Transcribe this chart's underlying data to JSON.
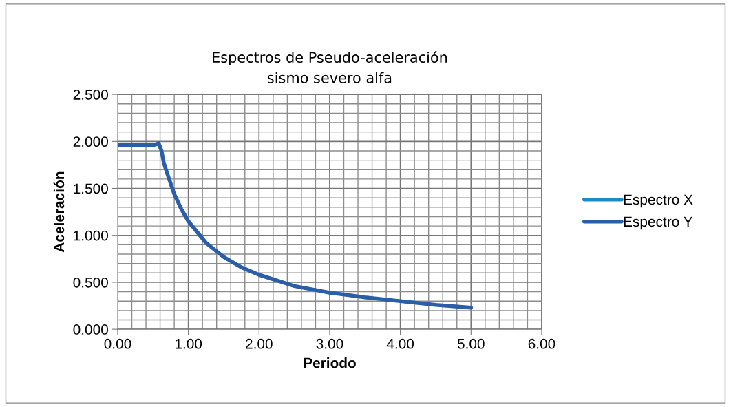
{
  "chart_data": {
    "type": "line",
    "title": "Espectros de Pseudo-aceleración\nsismo severo alfa",
    "xlabel": "Periodo",
    "ylabel": "Aceleración",
    "x": [
      0,
      0.1,
      0.2,
      0.3,
      0.4,
      0.5,
      0.58,
      0.62,
      0.65,
      0.7,
      0.8,
      0.9,
      1.0,
      1.25,
      1.5,
      1.75,
      2.0,
      2.5,
      3.0,
      3.5,
      4.0,
      4.5,
      5.0
    ],
    "series": [
      {
        "name": "Espectro X",
        "color": "#1f8ac4",
        "values": [
          null,
          null,
          null,
          null,
          null,
          null,
          null,
          null,
          null,
          null,
          null,
          null,
          null,
          null,
          null,
          null,
          null,
          null,
          null,
          null,
          null,
          null,
          null
        ]
      },
      {
        "name": "Espectro Y",
        "color": "#2a5ea8",
        "values": [
          1.96,
          1.96,
          1.96,
          1.96,
          1.96,
          1.96,
          1.98,
          1.9,
          1.78,
          1.66,
          1.44,
          1.28,
          1.15,
          0.92,
          0.77,
          0.66,
          0.58,
          0.46,
          0.39,
          0.34,
          0.3,
          0.26,
          0.23
        ]
      }
    ],
    "xlim": [
      0,
      6
    ],
    "ylim": [
      0,
      2.5
    ],
    "xticks": [
      {
        "value": 0,
        "label": "0.00"
      },
      {
        "value": 0.2,
        "label": null
      },
      {
        "value": 0.4,
        "label": null
      },
      {
        "value": 0.6,
        "label": null
      },
      {
        "value": 0.8,
        "label": null
      },
      {
        "value": 1,
        "label": "1.00"
      },
      {
        "value": 1.2,
        "label": null
      },
      {
        "value": 1.4,
        "label": null
      },
      {
        "value": 1.6,
        "label": null
      },
      {
        "value": 1.8,
        "label": null
      },
      {
        "value": 2,
        "label": "2.00"
      },
      {
        "value": 2.2,
        "label": null
      },
      {
        "value": 2.4,
        "label": null
      },
      {
        "value": 2.6,
        "label": null
      },
      {
        "value": 2.8,
        "label": null
      },
      {
        "value": 3,
        "label": "3.00"
      },
      {
        "value": 3.2,
        "label": null
      },
      {
        "value": 3.4,
        "label": null
      },
      {
        "value": 3.6,
        "label": null
      },
      {
        "value": 3.8,
        "label": null
      },
      {
        "value": 4,
        "label": "4.00"
      },
      {
        "value": 4.2,
        "label": null
      },
      {
        "value": 4.4,
        "label": null
      },
      {
        "value": 4.6,
        "label": null
      },
      {
        "value": 4.8,
        "label": null
      },
      {
        "value": 5,
        "label": "5.00"
      },
      {
        "value": 5.2,
        "label": null
      },
      {
        "value": 5.4,
        "label": null
      },
      {
        "value": 5.6,
        "label": null
      },
      {
        "value": 5.8,
        "label": null
      },
      {
        "value": 6,
        "label": "6.00"
      }
    ],
    "yticks": [
      {
        "value": 0,
        "label": "0.000"
      },
      {
        "value": 0.1,
        "label": null
      },
      {
        "value": 0.2,
        "label": null
      },
      {
        "value": 0.3,
        "label": null
      },
      {
        "value": 0.4,
        "label": null
      },
      {
        "value": 0.5,
        "label": "0.500"
      },
      {
        "value": 0.6,
        "label": null
      },
      {
        "value": 0.7,
        "label": null
      },
      {
        "value": 0.8,
        "label": null
      },
      {
        "value": 0.9,
        "label": null
      },
      {
        "value": 1,
        "label": "1.000"
      },
      {
        "value": 1.1,
        "label": null
      },
      {
        "value": 1.2,
        "label": null
      },
      {
        "value": 1.3,
        "label": null
      },
      {
        "value": 1.4,
        "label": null
      },
      {
        "value": 1.5,
        "label": "1.500"
      },
      {
        "value": 1.6,
        "label": null
      },
      {
        "value": 1.7,
        "label": null
      },
      {
        "value": 1.8,
        "label": null
      },
      {
        "value": 1.9,
        "label": null
      },
      {
        "value": 2,
        "label": "2.000"
      },
      {
        "value": 2.1,
        "label": null
      },
      {
        "value": 2.2,
        "label": null
      },
      {
        "value": 2.3,
        "label": null
      },
      {
        "value": 2.4,
        "label": null
      },
      {
        "value": 2.5,
        "label": "2.500"
      }
    ],
    "grid": true,
    "legend": "right",
    "marker": "none",
    "line_style": "solid"
  }
}
